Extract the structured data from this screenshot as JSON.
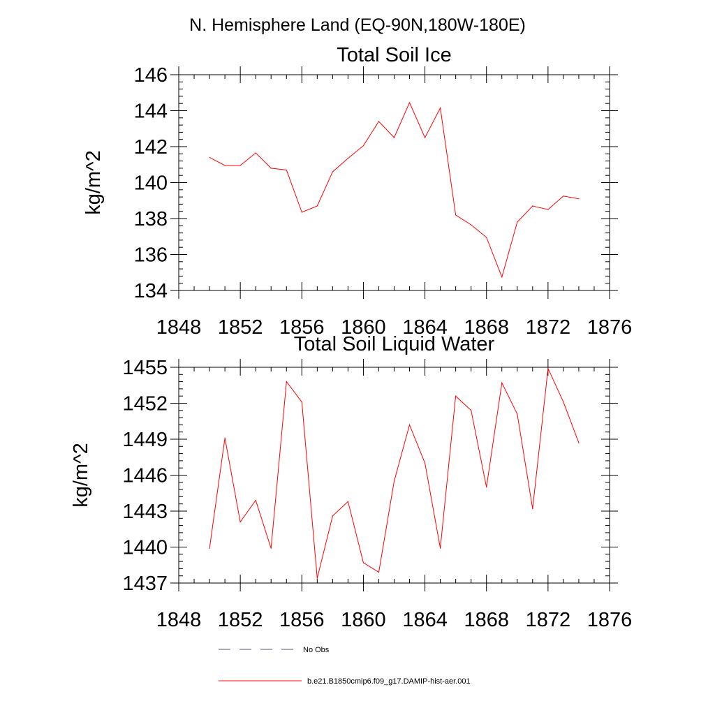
{
  "figure": {
    "title": "N. Hemisphere Land (EQ-90N,180W-180E)"
  },
  "chart_data": [
    {
      "type": "line",
      "title": "Total Soil Ice",
      "xlabel": "",
      "ylabel": "kg/m^2",
      "xlim": [
        1848,
        1876
      ],
      "ylim": [
        134,
        146
      ],
      "xticks": [
        1848,
        1852,
        1856,
        1860,
        1864,
        1868,
        1872,
        1876
      ],
      "yticks": [
        134,
        136,
        138,
        140,
        142,
        144,
        146
      ],
      "grid": false,
      "x": [
        1850,
        1851,
        1852,
        1853,
        1854,
        1855,
        1856,
        1857,
        1858,
        1859,
        1860,
        1861,
        1862,
        1863,
        1864,
        1865,
        1866,
        1867,
        1868,
        1869,
        1870,
        1871,
        1872,
        1873,
        1874
      ],
      "series": [
        {
          "name": "b.e21.B1850cmip6.f09_g17.DAMIP-hist-aer.001",
          "color": "#ff0000",
          "values": [
            141.4,
            140.95,
            140.95,
            141.65,
            140.8,
            140.7,
            138.35,
            138.7,
            140.6,
            141.35,
            142.05,
            143.4,
            142.5,
            144.45,
            142.5,
            144.15,
            138.2,
            137.65,
            136.95,
            134.75,
            137.8,
            138.7,
            138.5,
            139.25,
            139.1
          ]
        }
      ]
    },
    {
      "type": "line",
      "title": "Total Soil Liquid Water",
      "xlabel": "",
      "ylabel": "kg/m^2",
      "xlim": [
        1848,
        1876
      ],
      "ylim": [
        1437,
        1455
      ],
      "xticks": [
        1848,
        1852,
        1856,
        1860,
        1864,
        1868,
        1872,
        1876
      ],
      "yticks": [
        1437,
        1440,
        1443,
        1446,
        1449,
        1452,
        1455
      ],
      "grid": false,
      "x": [
        1850,
        1851,
        1852,
        1853,
        1854,
        1855,
        1856,
        1857,
        1858,
        1859,
        1860,
        1861,
        1862,
        1863,
        1864,
        1865,
        1866,
        1867,
        1868,
        1869,
        1870,
        1871,
        1872,
        1873,
        1874
      ],
      "series": [
        {
          "name": "b.e21.B1850cmip6.f09_g17.DAMIP-hist-aer.001",
          "color": "#ff0000",
          "values": [
            1439.9,
            1449.1,
            1442.1,
            1443.9,
            1439.9,
            1453.8,
            1452.1,
            1437.4,
            1442.6,
            1443.8,
            1438.7,
            1437.9,
            1445.5,
            1450.2,
            1447.0,
            1439.9,
            1452.6,
            1451.4,
            1445.0,
            1453.7,
            1451.1,
            1443.2,
            1454.9,
            1452.1,
            1448.7
          ]
        }
      ]
    }
  ],
  "legend": {
    "placement": "bottom",
    "items": [
      {
        "label": "No Obs",
        "style": "dashed",
        "color": "#55557a"
      },
      {
        "label": "b.e21.B1850cmip6.f09_g17.DAMIP-hist-aer.001",
        "style": "solid",
        "color": "#ff0000"
      }
    ]
  }
}
